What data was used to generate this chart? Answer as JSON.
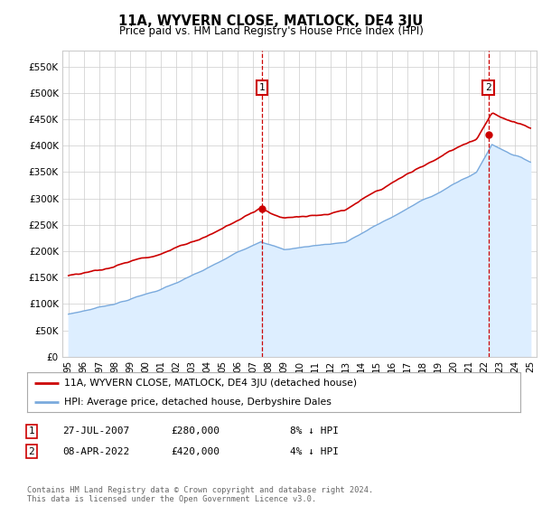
{
  "title": "11A, WYVERN CLOSE, MATLOCK, DE4 3JU",
  "subtitle": "Price paid vs. HM Land Registry's House Price Index (HPI)",
  "ylabel_ticks": [
    "£0",
    "£50K",
    "£100K",
    "£150K",
    "£200K",
    "£250K",
    "£300K",
    "£350K",
    "£400K",
    "£450K",
    "£500K",
    "£550K"
  ],
  "ytick_values": [
    0,
    50000,
    100000,
    150000,
    200000,
    250000,
    300000,
    350000,
    400000,
    450000,
    500000,
    550000
  ],
  "ylim": [
    0,
    580000
  ],
  "xlim_start": 1994.6,
  "xlim_end": 2025.4,
  "sale1_x": 2007.57,
  "sale1_y": 280000,
  "sale2_x": 2022.27,
  "sale2_y": 420000,
  "line1_color": "#cc0000",
  "line2_color": "#7aaadd",
  "line2_fill_color": "#ddeeff",
  "grid_color": "#cccccc",
  "bg_color": "#ffffff",
  "legend_line1": "11A, WYVERN CLOSE, MATLOCK, DE4 3JU (detached house)",
  "legend_line2": "HPI: Average price, detached house, Derbyshire Dales",
  "table_row1": [
    "1",
    "27-JUL-2007",
    "£280,000",
    "8% ↓ HPI"
  ],
  "table_row2": [
    "2",
    "08-APR-2022",
    "£420,000",
    "4% ↓ HPI"
  ],
  "footnote": "Contains HM Land Registry data © Crown copyright and database right 2024.\nThis data is licensed under the Open Government Licence v3.0.",
  "xtick_years": [
    1995,
    1996,
    1997,
    1998,
    1999,
    2000,
    2001,
    2002,
    2003,
    2004,
    2005,
    2006,
    2007,
    2008,
    2009,
    2010,
    2011,
    2012,
    2013,
    2014,
    2015,
    2016,
    2017,
    2018,
    2019,
    2020,
    2021,
    2022,
    2023,
    2024,
    2025
  ]
}
